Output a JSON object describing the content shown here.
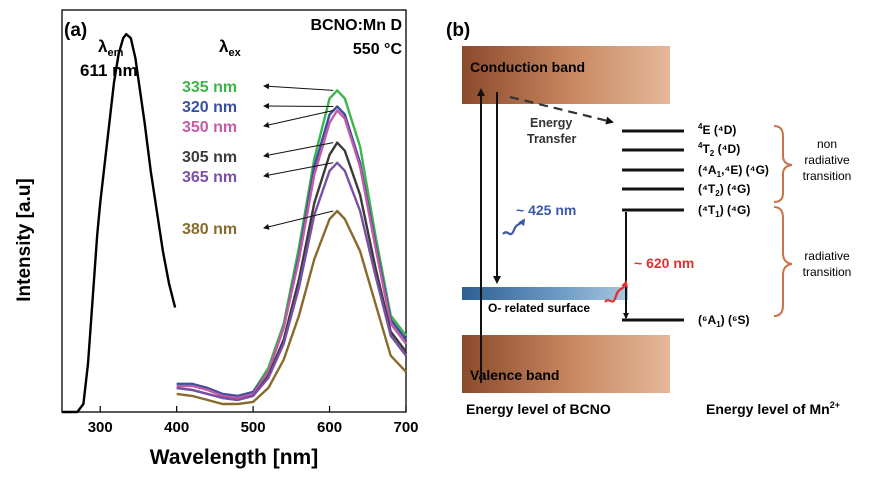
{
  "panel_a": {
    "label": "(a)",
    "sample": "BCNO:Mn D",
    "temperature": "550 °C",
    "lambda_em": {
      "symbol": "λ",
      "sub": "em",
      "value": "611 nm"
    },
    "lambda_ex": {
      "symbol": "λ",
      "sub": "ex"
    },
    "ylabel": "Intensity [a.u]",
    "xlabel": "Wavelength [nm]",
    "colors": {
      "335 nm": "#3cb54a",
      "320 nm": "#3a4fa0",
      "350 nm": "#c45aa8",
      "305 nm": "#3b3b3b",
      "365 nm": "#7a4fa5",
      "380 nm": "#8a6a2c",
      "excitation": "#000000"
    }
  },
  "chart_data": {
    "type": "line",
    "xlabel": "Wavelength [nm]",
    "ylabel": "Intensity [a.u]",
    "xlim": [
      250,
      700
    ],
    "ylim": [
      0,
      1.0
    ],
    "xticks": [
      300,
      400,
      500,
      600,
      700
    ],
    "grid": false,
    "series": [
      {
        "name": "excitation (λem = 611 nm)",
        "x": [
          250,
          270,
          278,
          284,
          290,
          296,
          300,
          306,
          312,
          318,
          324,
          330,
          334,
          340,
          346,
          352,
          358,
          366,
          374,
          382,
          390,
          398
        ],
        "y": [
          0,
          0,
          0.02,
          0.12,
          0.28,
          0.44,
          0.52,
          0.62,
          0.72,
          0.82,
          0.89,
          0.93,
          0.94,
          0.93,
          0.88,
          0.8,
          0.72,
          0.6,
          0.5,
          0.4,
          0.32,
          0.26
        ]
      },
      {
        "name": "335 nm",
        "x": [
          400,
          420,
          440,
          460,
          480,
          500,
          520,
          540,
          560,
          580,
          600,
          610,
          620,
          640,
          660,
          680,
          700
        ],
        "y": [
          0.07,
          0.07,
          0.06,
          0.04,
          0.035,
          0.05,
          0.11,
          0.22,
          0.41,
          0.63,
          0.78,
          0.8,
          0.78,
          0.66,
          0.44,
          0.24,
          0.19
        ]
      },
      {
        "name": "320 nm",
        "x": [
          400,
          420,
          440,
          460,
          480,
          500,
          520,
          540,
          560,
          580,
          600,
          610,
          620,
          640,
          660,
          680,
          700
        ],
        "y": [
          0.07,
          0.07,
          0.06,
          0.045,
          0.04,
          0.05,
          0.1,
          0.21,
          0.39,
          0.61,
          0.74,
          0.76,
          0.74,
          0.62,
          0.42,
          0.23,
          0.18
        ]
      },
      {
        "name": "350 nm",
        "x": [
          400,
          420,
          440,
          460,
          480,
          500,
          520,
          540,
          560,
          580,
          600,
          610,
          620,
          640,
          660,
          680,
          700
        ],
        "y": [
          0.065,
          0.065,
          0.055,
          0.04,
          0.035,
          0.045,
          0.1,
          0.21,
          0.38,
          0.59,
          0.72,
          0.75,
          0.73,
          0.61,
          0.41,
          0.22,
          0.17
        ]
      },
      {
        "name": "305 nm",
        "x": [
          400,
          420,
          440,
          460,
          480,
          500,
          520,
          540,
          560,
          580,
          600,
          610,
          620,
          640,
          660,
          680,
          700
        ],
        "y": [
          0.06,
          0.055,
          0.045,
          0.035,
          0.03,
          0.04,
          0.09,
          0.18,
          0.33,
          0.52,
          0.64,
          0.67,
          0.65,
          0.54,
          0.36,
          0.2,
          0.15
        ]
      },
      {
        "name": "365 nm",
        "x": [
          400,
          420,
          440,
          460,
          480,
          500,
          520,
          540,
          560,
          580,
          600,
          610,
          620,
          640,
          660,
          680,
          700
        ],
        "y": [
          0.06,
          0.055,
          0.045,
          0.035,
          0.03,
          0.04,
          0.085,
          0.17,
          0.31,
          0.49,
          0.6,
          0.62,
          0.6,
          0.5,
          0.34,
          0.19,
          0.14
        ]
      },
      {
        "name": "380 nm",
        "x": [
          400,
          420,
          440,
          460,
          480,
          500,
          520,
          540,
          560,
          580,
          600,
          610,
          620,
          640,
          660,
          680,
          700
        ],
        "y": [
          0.045,
          0.04,
          0.03,
          0.02,
          0.02,
          0.025,
          0.06,
          0.13,
          0.24,
          0.38,
          0.48,
          0.5,
          0.48,
          0.4,
          0.27,
          0.14,
          0.1
        ]
      }
    ]
  },
  "panel_b": {
    "label": "(b)",
    "conduction_band": "Conduction band",
    "valence_band": "Valence band",
    "energy_transfer": [
      "Energy",
      "Transfer"
    ],
    "excitation_wavelength": "~ 425 nm",
    "emission_wavelength": "~ 620 nm",
    "surface_level": "O- related surface",
    "levels": [
      {
        "base": "E",
        "sup": "4",
        "term": "(⁴D)"
      },
      {
        "base": "T",
        "sup": "4",
        "sub": "2",
        "term": "(⁴D)"
      },
      {
        "text": "(⁴A",
        "sub": "1",
        "rest": ",⁴E) (⁴G)"
      },
      {
        "text": "(⁴T",
        "sub": "2",
        "rest": ") (⁴G)"
      },
      {
        "text": "(⁴T",
        "sub": "1",
        "rest": ") (⁴G)"
      },
      {
        "text": "(⁶A",
        "sub": "1",
        "rest": ") (⁶S)"
      }
    ],
    "non_radiative": [
      "non",
      "radiative",
      "transition"
    ],
    "radiative": [
      "radiative",
      "transition"
    ],
    "footer_left": "Energy level of BCNO",
    "footer_right": {
      "text": "Energy level of Mn",
      "sup": "2+"
    },
    "colors": {
      "band_dark": "#8b4a2b",
      "band_light": "#d9a68a",
      "surface": "#3f77ab",
      "blue_text": "#3a5aa8",
      "red_text": "#e03030",
      "brace": "#c8744a"
    }
  }
}
